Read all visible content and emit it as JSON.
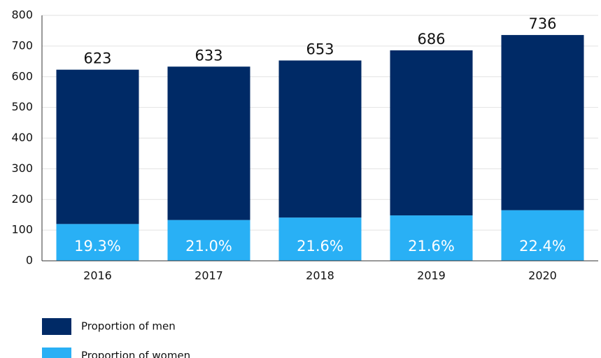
{
  "chart_data": {
    "type": "stacked_bar",
    "categories": [
      "2016",
      "2017",
      "2018",
      "2019",
      "2020"
    ],
    "series": [
      {
        "name": "Proportion of women",
        "color": "#29b0f5",
        "values": [
          120,
          133,
          141,
          148,
          165
        ],
        "share_labels": [
          "19.3%",
          "21.0%",
          "21.6%",
          "21.6%",
          "22.4%"
        ]
      },
      {
        "name": "Proportion of men",
        "color": "#002a66",
        "values": [
          503,
          500,
          512,
          538,
          571
        ]
      }
    ],
    "totals": [
      623,
      633,
      653,
      686,
      736
    ],
    "ylim": [
      0,
      800
    ],
    "yticks": [
      0,
      100,
      200,
      300,
      400,
      500,
      600,
      700,
      800
    ],
    "grid": true
  }
}
